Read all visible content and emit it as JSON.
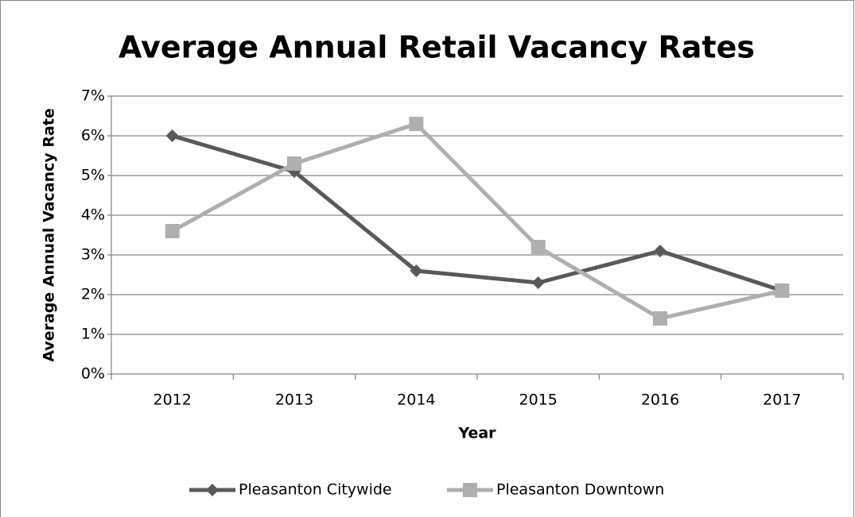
{
  "chart_data": {
    "type": "line",
    "title": "Average Annual Retail Vacancy Rates",
    "xlabel": "Year",
    "ylabel": "Average Annual Vacancy Rate",
    "categories": [
      "2012",
      "2013",
      "2014",
      "2015",
      "2016",
      "2017"
    ],
    "series": [
      {
        "name": "Pleasanton Citywide",
        "color": "#595959",
        "marker": "diamond",
        "values": [
          6,
          5.1,
          2.6,
          2.3,
          3.1,
          2.1
        ]
      },
      {
        "name": "Pleasanton Downtown",
        "color": "#afafaf",
        "marker": "square",
        "values": [
          3.6,
          5.3,
          6.3,
          3.2,
          1.4,
          2.1
        ]
      }
    ],
    "ylim": [
      0,
      7
    ],
    "yticks": [
      {
        "value": 0,
        "label": "0%"
      },
      {
        "value": 1,
        "label": "1%"
      },
      {
        "value": 2,
        "label": "2%"
      },
      {
        "value": 3,
        "label": "3%"
      },
      {
        "value": 4,
        "label": "4%"
      },
      {
        "value": 5,
        "label": "5%"
      },
      {
        "value": 6,
        "label": "6%"
      },
      {
        "value": 7,
        "label": "7%"
      }
    ],
    "grid": true,
    "legend": "bottom"
  }
}
